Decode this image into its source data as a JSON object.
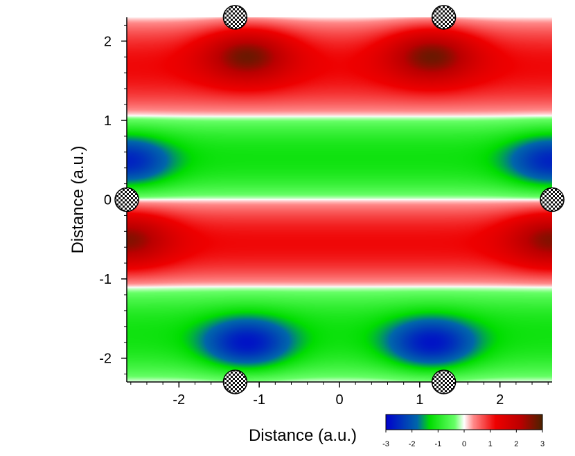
{
  "chart_data": {
    "type": "heatmap",
    "xlabel": "Distance (a.u.)",
    "ylabel": "Distance (a.u.)",
    "xlim": [
      -2.65,
      2.65
    ],
    "ylim": [
      -2.3,
      2.3
    ],
    "x_ticks": [
      -2,
      -1,
      0,
      1,
      2
    ],
    "x_tick_labels": [
      "-2",
      "-1",
      "0",
      "1",
      "2"
    ],
    "y_ticks": [
      -2,
      -1,
      0,
      1,
      2
    ],
    "y_tick_labels": [
      "-2",
      "-1",
      "0",
      "1",
      "2"
    ],
    "colorbar": {
      "range": [
        -3,
        3
      ],
      "ticks": [
        -3,
        -2,
        -1,
        0,
        1,
        2,
        3
      ],
      "tick_labels": [
        "-3",
        "-2",
        "-1",
        "0",
        "1",
        "2",
        "3"
      ],
      "colors": [
        "#0000cc",
        "#00ee00",
        "#ffffff",
        "#ee0000",
        "#4a2200"
      ]
    },
    "field_bands": [
      {
        "y_range": [
          1.05,
          2.3
        ],
        "sign": "positive",
        "label": "red band"
      },
      {
        "y_range": [
          0.0,
          1.05
        ],
        "sign": "negative",
        "label": "green band"
      },
      {
        "y_range": [
          -1.1,
          0.0
        ],
        "sign": "positive",
        "label": "red band"
      },
      {
        "y_range": [
          -2.3,
          -1.1
        ],
        "sign": "negative",
        "label": "green band"
      }
    ],
    "extrema": [
      {
        "x": -1.15,
        "y": 1.82,
        "value": 2.8
      },
      {
        "x": 1.15,
        "y": 1.82,
        "value": 2.8
      },
      {
        "x": -2.65,
        "y": 0.48,
        "value": -2.6
      },
      {
        "x": 2.65,
        "y": 0.48,
        "value": -2.6
      },
      {
        "x": -2.65,
        "y": -0.5,
        "value": 2.6
      },
      {
        "x": 2.65,
        "y": -0.5,
        "value": 2.6
      },
      {
        "x": -1.15,
        "y": -1.82,
        "value": -2.8
      },
      {
        "x": 1.15,
        "y": -1.82,
        "value": -2.8
      }
    ],
    "atoms": [
      {
        "x": -1.3,
        "y": 2.3
      },
      {
        "x": 1.3,
        "y": 2.3
      },
      {
        "x": -2.65,
        "y": 0.0
      },
      {
        "x": 2.65,
        "y": 0.0
      },
      {
        "x": -1.3,
        "y": -2.3
      },
      {
        "x": 1.3,
        "y": -2.3
      }
    ],
    "atom_icon": "checkered-sphere-icon"
  }
}
